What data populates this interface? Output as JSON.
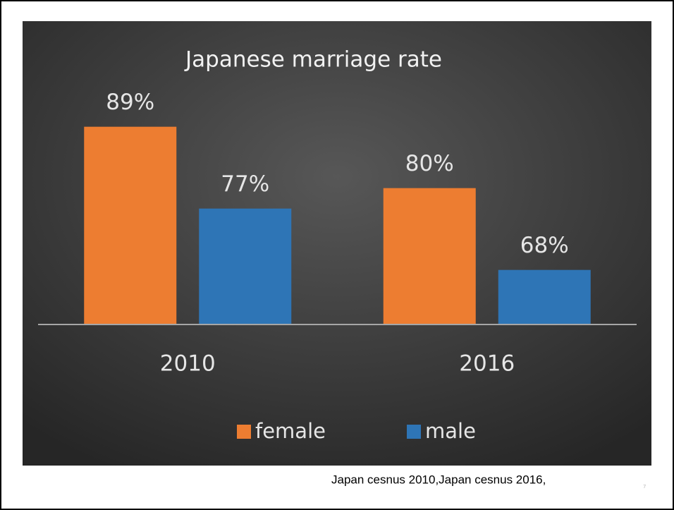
{
  "chart_data": {
    "type": "bar",
    "title": "Japanese marriage rate",
    "categories": [
      "2010",
      "2016"
    ],
    "series": [
      {
        "name": "female",
        "color": "#ed7d31",
        "values": [
          89,
          80
        ],
        "value_labels": [
          "89%",
          "80%"
        ]
      },
      {
        "name": "male",
        "color": "#2e75b6",
        "values": [
          77,
          68
        ],
        "value_labels": [
          "77%",
          "68%"
        ]
      }
    ],
    "ylim": [
      60,
      90
    ],
    "legend": "bottom"
  },
  "footer": {
    "source": "Japan cesnus 2010,Japan cesnus 2016,",
    "page_number": "7"
  }
}
